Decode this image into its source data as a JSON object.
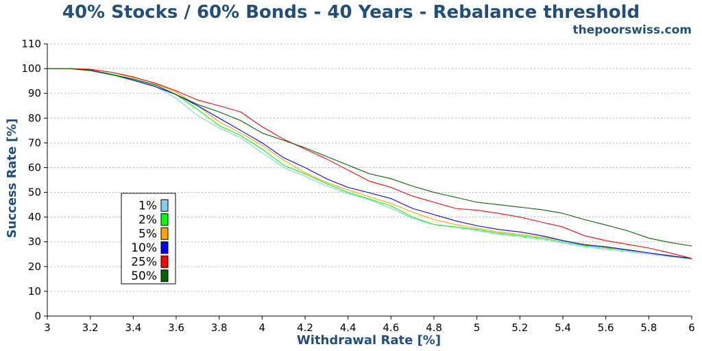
{
  "chart_data": {
    "type": "line",
    "title": "40% Stocks / 60% Bonds - 40 Years - Rebalance threshold",
    "subtitle": "thepoorswiss.com",
    "xlabel": "Withdrawal Rate [%]",
    "ylabel": "Success Rate [%]",
    "xlim": [
      3,
      6
    ],
    "ylim": [
      0,
      110
    ],
    "x_ticks": [
      3,
      3.2,
      3.4,
      3.6,
      3.8,
      4,
      4.2,
      4.4,
      4.6,
      4.8,
      5,
      5.2,
      5.4,
      5.6,
      5.8,
      6
    ],
    "x_tick_labels": [
      "3",
      "3.2",
      "3.4",
      "3.6",
      "3.8",
      "4",
      "4.2",
      "4.4",
      "4.6",
      "4.8",
      "5",
      "5.2",
      "5.4",
      "5.6",
      "5.8",
      "6"
    ],
    "y_ticks": [
      0,
      10,
      20,
      30,
      40,
      50,
      60,
      70,
      80,
      90,
      100,
      110
    ],
    "y_tick_labels": [
      "0",
      "10",
      "20",
      "30",
      "40",
      "50",
      "60",
      "70",
      "80",
      "90",
      "100",
      "110"
    ],
    "grid": "horizontal-dotted",
    "legend_position": "left",
    "x": [
      3.0,
      3.1,
      3.2,
      3.3,
      3.4,
      3.5,
      3.6,
      3.7,
      3.8,
      3.9,
      4.0,
      4.1,
      4.2,
      4.3,
      4.4,
      4.5,
      4.6,
      4.7,
      4.8,
      4.9,
      5.0,
      5.1,
      5.2,
      5.3,
      5.4,
      5.5,
      5.6,
      5.7,
      5.8,
      5.9,
      6.0
    ],
    "series": [
      {
        "name": "1%",
        "color": "#87ceeb",
        "values": [
          100,
          100,
          99.3,
          97.5,
          95.5,
          93,
          88,
          81,
          76,
          72,
          66,
          60,
          56.5,
          52.5,
          49.5,
          47,
          43.5,
          39.5,
          37,
          36,
          34.5,
          33,
          32,
          31,
          29.5,
          28,
          27,
          26,
          25,
          24,
          23
        ]
      },
      {
        "name": "2%",
        "color": "#00ff00",
        "values": [
          100,
          100,
          99.3,
          97.8,
          95.8,
          93.5,
          89.5,
          83.5,
          77,
          73,
          67.5,
          61,
          57.5,
          53.5,
          50,
          47.3,
          44.5,
          40,
          37,
          36,
          35,
          33.5,
          32.5,
          31.5,
          30,
          28.5,
          27.5,
          26.5,
          25.5,
          24.5,
          23
        ]
      },
      {
        "name": "5%",
        "color": "#ffa500",
        "values": [
          100,
          100,
          99.8,
          98.5,
          96.8,
          94,
          90.5,
          85,
          78.5,
          74,
          69,
          63,
          58,
          54,
          51,
          48.2,
          45.5,
          42,
          39,
          37,
          35.5,
          34,
          33,
          32,
          30.5,
          29,
          27.8,
          26.8,
          25.5,
          24.5,
          23.3
        ]
      },
      {
        "name": "10%",
        "color": "#0000ff",
        "values": [
          100,
          100,
          99.4,
          97.6,
          95.3,
          92.8,
          89.5,
          85,
          80,
          75,
          70,
          64,
          60,
          55.5,
          52,
          49.8,
          47.5,
          43.5,
          41,
          38.5,
          36.5,
          35,
          34,
          32.5,
          30.5,
          28.8,
          28,
          26.8,
          25.5,
          24.3,
          23.3
        ]
      },
      {
        "name": "25%",
        "color": "#ff0000",
        "values": [
          100,
          100,
          99.7,
          98.5,
          96.5,
          94.2,
          91,
          87.3,
          85,
          82.5,
          76.5,
          71.5,
          67.5,
          63.5,
          59,
          54.5,
          52,
          48.5,
          46,
          43.5,
          42.8,
          41.5,
          40,
          38,
          36,
          32.5,
          30.5,
          29,
          27.5,
          25.5,
          23.3
        ]
      },
      {
        "name": "50%",
        "color": "#006400",
        "values": [
          100,
          100,
          99.2,
          97.5,
          95.8,
          93.5,
          89.5,
          85.5,
          82.5,
          79,
          74,
          71,
          68,
          64.5,
          61,
          57.5,
          55.5,
          52.5,
          50,
          48,
          46,
          45,
          44,
          43,
          41.5,
          39,
          36.8,
          34.5,
          31.5,
          29.7,
          28.3
        ]
      }
    ]
  }
}
